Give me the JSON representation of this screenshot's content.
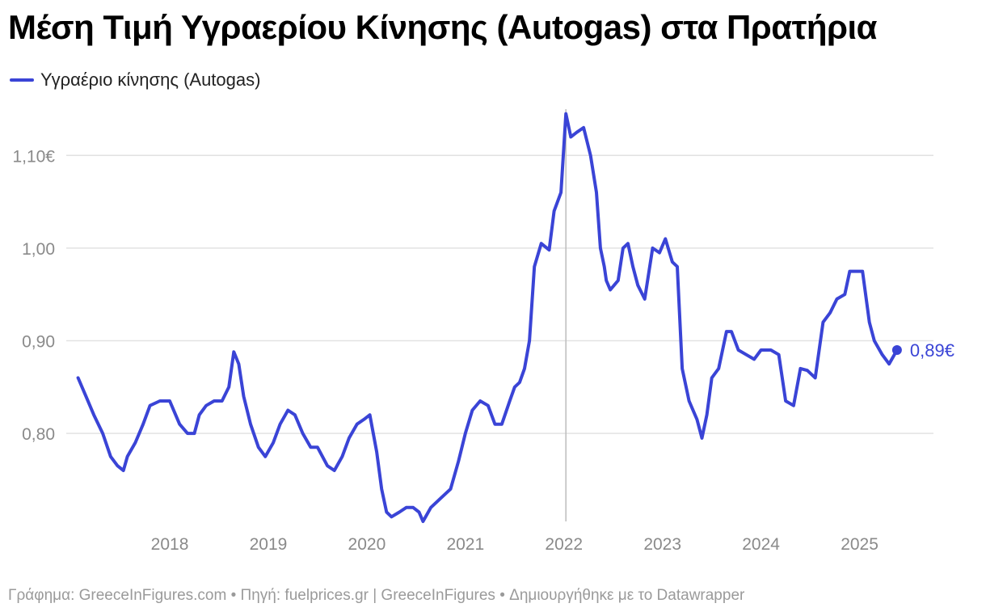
{
  "title": "Μέση Τιμή Υγραερίου Κίνησης (Autogas) στα Πρατήρια",
  "footer": "Γράφημα: GreeceInFigures.com • Πηγή: fuelprices.gr | GreeceInFigures • Δημιουργήθηκε με το Datawrapper",
  "colors": {
    "line": "#3a44d6",
    "grid": "#e2e2e2",
    "ticks": "#8a8a8a",
    "marker_line": "#bdbdbd"
  },
  "chart_data": {
    "type": "line",
    "title": "Μέση Τιμή Υγραερίου Κίνησης (Autogas) στα Πρατήρια",
    "xlabel": "",
    "ylabel": "",
    "ylim": [
      0.705,
      1.15
    ],
    "xlim": [
      2017.1,
      2025.9
    ],
    "y_ticks": [
      0.8,
      0.9,
      1.0,
      1.1
    ],
    "y_tick_labels": [
      "0,80",
      "0,90",
      "1,00",
      "1,10€"
    ],
    "x_ticks": [
      2018,
      2019,
      2020,
      2021,
      2022,
      2023,
      2024,
      2025
    ],
    "x_tick_labels": [
      "2018",
      "2019",
      "2020",
      "2021",
      "2022",
      "2023",
      "2024",
      "2025"
    ],
    "grid": "horizontal",
    "legend_position": "top-left",
    "vertical_marker_x": 2022.17,
    "end_label": "0,89€",
    "series": [
      {
        "name": "Υγραέριο κίνησης (Autogas)",
        "x": [
          2017.22,
          2017.3,
          2017.38,
          2017.47,
          2017.55,
          2017.62,
          2017.68,
          2017.72,
          2017.8,
          2017.88,
          2017.95,
          2018.05,
          2018.15,
          2018.25,
          2018.33,
          2018.4,
          2018.45,
          2018.52,
          2018.6,
          2018.68,
          2018.75,
          2018.8,
          2018.85,
          2018.9,
          2018.97,
          2019.05,
          2019.12,
          2019.2,
          2019.27,
          2019.35,
          2019.42,
          2019.5,
          2019.58,
          2019.65,
          2019.75,
          2019.82,
          2019.9,
          2019.97,
          2020.05,
          2020.12,
          2020.18,
          2020.25,
          2020.3,
          2020.35,
          2020.4,
          2020.48,
          2020.55,
          2020.62,
          2020.68,
          2020.72,
          2020.8,
          2020.9,
          2021.0,
          2021.08,
          2021.15,
          2021.22,
          2021.3,
          2021.38,
          2021.45,
          2021.52,
          2021.6,
          2021.65,
          2021.7,
          2021.75,
          2021.8,
          2021.85,
          2021.92,
          2022.0,
          2022.05,
          2022.12,
          2022.17,
          2022.22,
          2022.28,
          2022.35,
          2022.42,
          2022.48,
          2022.52,
          2022.56,
          2022.58,
          2022.62,
          2022.7,
          2022.75,
          2022.8,
          2022.85,
          2022.9,
          2022.97,
          2023.05,
          2023.12,
          2023.18,
          2023.25,
          2023.3,
          2023.35,
          2023.42,
          2023.5,
          2023.55,
          2023.6,
          2023.65,
          2023.72,
          2023.8,
          2023.85,
          2023.92,
          2024.0,
          2024.08,
          2024.15,
          2024.25,
          2024.33,
          2024.4,
          2024.48,
          2024.55,
          2024.62,
          2024.7,
          2024.78,
          2024.85,
          2024.92,
          2025.0,
          2025.05,
          2025.1,
          2025.18,
          2025.25,
          2025.3,
          2025.38,
          2025.45,
          2025.53
        ],
        "values": [
          0.86,
          0.84,
          0.82,
          0.8,
          0.775,
          0.765,
          0.76,
          0.775,
          0.79,
          0.81,
          0.83,
          0.835,
          0.835,
          0.81,
          0.8,
          0.8,
          0.82,
          0.83,
          0.835,
          0.835,
          0.85,
          0.888,
          0.875,
          0.84,
          0.81,
          0.785,
          0.775,
          0.79,
          0.81,
          0.825,
          0.82,
          0.8,
          0.785,
          0.785,
          0.765,
          0.76,
          0.775,
          0.795,
          0.81,
          0.815,
          0.82,
          0.78,
          0.74,
          0.715,
          0.71,
          0.715,
          0.72,
          0.72,
          0.715,
          0.705,
          0.72,
          0.73,
          0.74,
          0.77,
          0.8,
          0.825,
          0.835,
          0.83,
          0.81,
          0.81,
          0.835,
          0.85,
          0.855,
          0.87,
          0.9,
          0.98,
          1.005,
          0.998,
          1.04,
          1.06,
          1.145,
          1.12,
          1.125,
          1.13,
          1.1,
          1.06,
          1.0,
          0.98,
          0.965,
          0.955,
          0.965,
          1.0,
          1.005,
          0.98,
          0.96,
          0.945,
          1.0,
          0.995,
          1.01,
          0.985,
          0.98,
          0.87,
          0.835,
          0.815,
          0.795,
          0.82,
          0.86,
          0.87,
          0.91,
          0.91,
          0.89,
          0.885,
          0.88,
          0.89,
          0.89,
          0.885,
          0.835,
          0.83,
          0.87,
          0.868,
          0.86,
          0.92,
          0.93,
          0.945,
          0.95,
          0.975,
          0.975,
          0.975,
          0.92,
          0.9,
          0.885,
          0.875,
          0.89
        ]
      }
    ]
  }
}
